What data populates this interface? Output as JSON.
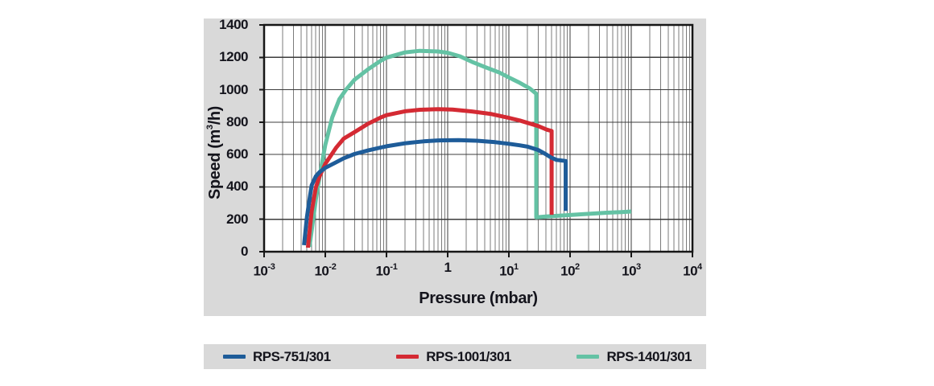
{
  "panel": {
    "background": "#d9d9d9",
    "text_color": "#14141c"
  },
  "chart_data": {
    "type": "line",
    "title": "",
    "xlabel": "Pressure (mbar)",
    "ylabel_parts": {
      "prefix": "Speed (m",
      "sup": "3",
      "suffix": "/h)"
    },
    "x_scale": "log",
    "x_range_exponents": [
      -3,
      4
    ],
    "x_ticks": [
      {
        "base": "10",
        "sup": "-3"
      },
      {
        "base": "10",
        "sup": "-2"
      },
      {
        "base": "10",
        "sup": "-1"
      },
      {
        "base": "1",
        "sup": ""
      },
      {
        "base": "10",
        "sup": "1"
      },
      {
        "base": "10",
        "sup": "2"
      },
      {
        "base": "10",
        "sup": "3"
      },
      {
        "base": "10",
        "sup": "4"
      }
    ],
    "y_ticks": [
      0,
      200,
      400,
      600,
      800,
      1000,
      1200,
      1400
    ],
    "ylim": [
      0,
      1400
    ],
    "grid": {
      "minor_multiples": [
        2,
        3,
        4,
        5,
        6,
        7,
        8,
        9
      ],
      "minor_color": "#7b7b7b",
      "major_color": "#3c3c3c",
      "border_color": "#161616"
    },
    "legend_position": "bottom",
    "series": [
      {
        "name": "RPS-751/301",
        "color": "#1e5c99",
        "points": [
          [
            0.0045,
            40
          ],
          [
            0.005,
            210
          ],
          [
            0.0055,
            320
          ],
          [
            0.006,
            410
          ],
          [
            0.007,
            465
          ],
          [
            0.008,
            490
          ],
          [
            0.01,
            518
          ],
          [
            0.015,
            552
          ],
          [
            0.02,
            577
          ],
          [
            0.03,
            603
          ],
          [
            0.05,
            625
          ],
          [
            0.08,
            643
          ],
          [
            0.1,
            651
          ],
          [
            0.2,
            669
          ],
          [
            0.4,
            681
          ],
          [
            0.7,
            687
          ],
          [
            1.5,
            689
          ],
          [
            3,
            685
          ],
          [
            6,
            676
          ],
          [
            10,
            666
          ],
          [
            15,
            657
          ],
          [
            20,
            649
          ],
          [
            30,
            628
          ],
          [
            40,
            602
          ],
          [
            50,
            580
          ],
          [
            60,
            567
          ],
          [
            85,
            560
          ],
          [
            85,
            252
          ]
        ]
      },
      {
        "name": "RPS-1001/301",
        "color": "#d42a33",
        "points": [
          [
            0.0052,
            25
          ],
          [
            0.006,
            250
          ],
          [
            0.007,
            395
          ],
          [
            0.008,
            462
          ],
          [
            0.01,
            542
          ],
          [
            0.015,
            642
          ],
          [
            0.02,
            698
          ],
          [
            0.03,
            738
          ],
          [
            0.05,
            790
          ],
          [
            0.08,
            828
          ],
          [
            0.1,
            843
          ],
          [
            0.2,
            867
          ],
          [
            0.35,
            876
          ],
          [
            0.7,
            880
          ],
          [
            1.2,
            877
          ],
          [
            2.5,
            866
          ],
          [
            5,
            851
          ],
          [
            10,
            826
          ],
          [
            15,
            810
          ],
          [
            20,
            796
          ],
          [
            30,
            776
          ],
          [
            42,
            753
          ],
          [
            50,
            745
          ],
          [
            50,
            228
          ]
        ]
      },
      {
        "name": "RPS-1401/301",
        "color": "#64c2a4",
        "points": [
          [
            0.0055,
            30
          ],
          [
            0.006,
            130
          ],
          [
            0.007,
            320
          ],
          [
            0.008,
            455
          ],
          [
            0.01,
            660
          ],
          [
            0.013,
            830
          ],
          [
            0.017,
            942
          ],
          [
            0.022,
            1002
          ],
          [
            0.03,
            1062
          ],
          [
            0.05,
            1126
          ],
          [
            0.08,
            1178
          ],
          [
            0.1,
            1198
          ],
          [
            0.2,
            1230
          ],
          [
            0.35,
            1240
          ],
          [
            0.7,
            1236
          ],
          [
            1,
            1228
          ],
          [
            1.6,
            1206
          ],
          [
            2.5,
            1172
          ],
          [
            4,
            1141
          ],
          [
            7,
            1106
          ],
          [
            10,
            1076
          ],
          [
            15,
            1043
          ],
          [
            22,
            1008
          ],
          [
            28,
            975
          ],
          [
            28,
            212
          ],
          [
            40,
            217
          ],
          [
            70,
            223
          ],
          [
            150,
            231
          ],
          [
            400,
            241
          ],
          [
            700,
            245
          ],
          [
            1000,
            248
          ]
        ]
      }
    ]
  }
}
